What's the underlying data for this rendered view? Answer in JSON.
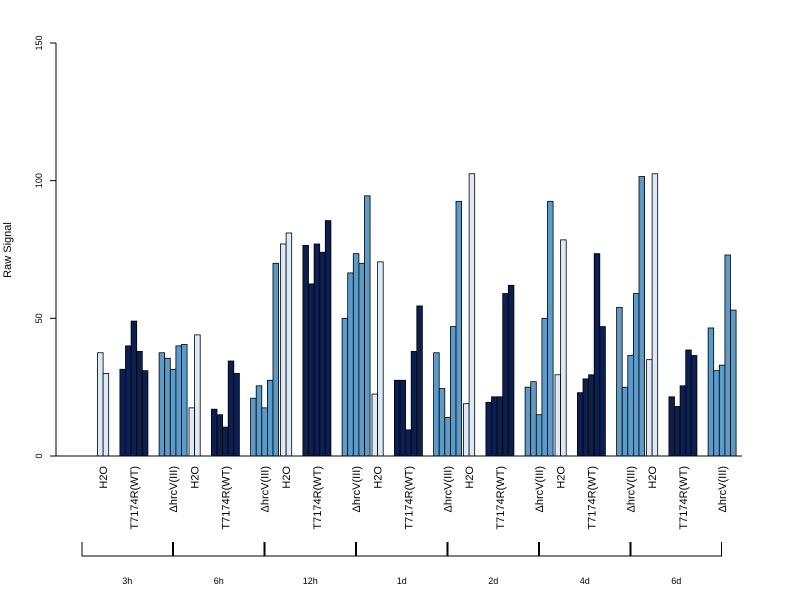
{
  "chart_data": {
    "type": "bar",
    "ylabel": "Raw Signal",
    "ylim": [
      0,
      150
    ],
    "yticks": [
      0,
      50,
      100,
      150
    ],
    "treatment_labels": [
      "H2O",
      "T7174R(WT)",
      "ΔhrcV(III)"
    ],
    "colors": {
      "H2O": "#dde9f6",
      "T7174R(WT)": "#0b1f50",
      "ΔhrcV(III)": "#5b9bc9"
    },
    "groups": [
      {
        "label": "3h",
        "H2O": [
          37.5,
          30.0
        ],
        "T7174R(WT)": [
          31.5,
          40.0,
          49.0,
          38.0,
          31.0
        ],
        "ΔhrcV(III)": [
          37.5,
          35.5,
          31.5,
          40.0,
          40.5
        ]
      },
      {
        "label": "6h",
        "H2O": [
          17.5,
          44.0
        ],
        "T7174R(WT)": [
          17.0,
          15.0,
          10.5,
          34.5,
          30.0
        ],
        "ΔhrcV(III)": [
          21.0,
          25.5,
          17.5,
          27.5,
          70.0
        ]
      },
      {
        "label": "12h",
        "H2O": [
          77.0,
          81.0
        ],
        "T7174R(WT)": [
          76.5,
          62.5,
          77.0,
          74.0,
          85.5
        ],
        "ΔhrcV(III)": [
          50.0,
          66.5,
          73.5,
          70.0,
          94.5
        ]
      },
      {
        "label": "1d",
        "H2O": [
          22.5,
          70.5
        ],
        "T7174R(WT)": [
          27.5,
          27.5,
          9.5,
          38.0,
          54.5
        ],
        "ΔhrcV(III)": [
          37.5,
          24.5,
          14.0,
          47.0,
          92.5
        ]
      },
      {
        "label": "2d",
        "H2O": [
          19.0,
          102.5
        ],
        "T7174R(WT)": [
          19.5,
          21.5,
          21.5,
          59.0,
          62.0
        ],
        "ΔhrcV(III)": [
          25.0,
          27.0,
          15.0,
          50.0,
          92.5
        ]
      },
      {
        "label": "4d",
        "H2O": [
          29.5,
          78.5
        ],
        "T7174R(WT)": [
          23.0,
          28.0,
          29.5,
          73.5,
          47.0
        ],
        "ΔhrcV(III)": [
          54.0,
          25.0,
          36.5,
          59.0,
          101.5
        ]
      },
      {
        "label": "6d",
        "H2O": [
          35.0,
          102.5
        ],
        "T7174R(WT)": [
          21.5,
          18.0,
          25.5,
          38.5,
          36.5
        ],
        "ΔhrcV(III)": [
          46.5,
          31.0,
          33.0,
          73.0,
          53.0
        ]
      }
    ]
  }
}
